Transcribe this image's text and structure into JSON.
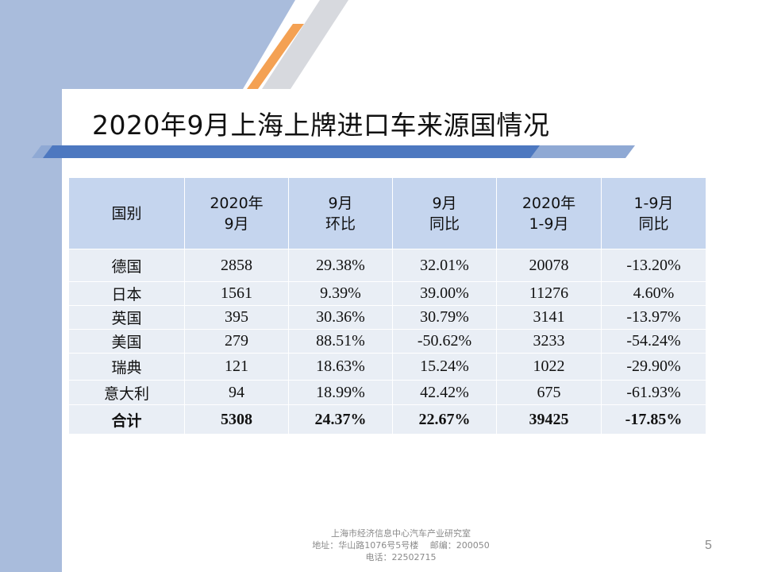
{
  "slide": {
    "title": "2020年9月上海上牌进口车来源国情况",
    "page_number": "5"
  },
  "colors": {
    "left_band": "#a9bcdc",
    "accent_orange": "#f4a153",
    "stripe_light": "#d7d9de",
    "underline_blue": "#4d78c0",
    "header_fill": "#c5d5ee",
    "cell_fill": "#e9eef5"
  },
  "table": {
    "headers": [
      [
        "国别"
      ],
      [
        "2020年",
        "9月"
      ],
      [
        "9月",
        "环比"
      ],
      [
        "9月",
        "同比"
      ],
      [
        "2020年",
        "1-9月"
      ],
      [
        "1-9月",
        "同比"
      ]
    ],
    "rows": [
      [
        "德国",
        "2858",
        "29.38%",
        "32.01%",
        "20078",
        "-13.20%"
      ],
      [
        "日本",
        "1561",
        "9.39%",
        "39.00%",
        "11276",
        "4.60%"
      ],
      [
        "英国",
        "395",
        "30.36%",
        "30.79%",
        "3141",
        "-13.97%"
      ],
      [
        "美国",
        "279",
        "88.51%",
        "-50.62%",
        "3233",
        "-54.24%"
      ],
      [
        "瑞典",
        "121",
        "18.63%",
        "15.24%",
        "1022",
        "-29.90%"
      ],
      [
        "意大利",
        "94",
        "18.99%",
        "42.42%",
        "675",
        "-61.93%"
      ]
    ],
    "total": [
      "合计",
      "5308",
      "24.37%",
      "22.67%",
      "39425",
      "-17.85%"
    ]
  },
  "footer": {
    "line1": "上海市经济信息中心汽车产业研究室",
    "line2": "地址：华山路1076号5号楼　 邮编：200050",
    "line3": "电话：22502715"
  }
}
